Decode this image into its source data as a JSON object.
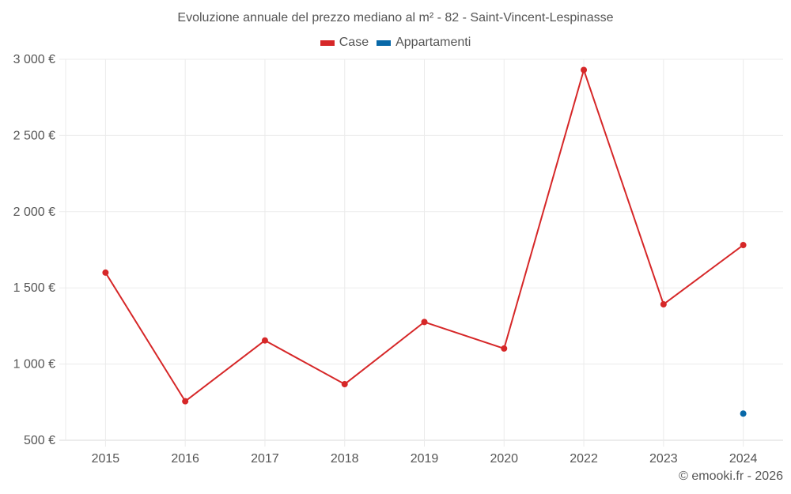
{
  "chart_data": {
    "type": "line",
    "title": "Evoluzione annuale del prezzo mediano al m² - 82 - Saint-Vincent-Lespinasse",
    "xlabel": "",
    "ylabel": "",
    "categories": [
      "2015",
      "2016",
      "2017",
      "2018",
      "2019",
      "2020",
      "2022",
      "2023",
      "2024"
    ],
    "series": [
      {
        "name": "Case",
        "color": "#d62728",
        "values": [
          1600,
          756,
          1155,
          868,
          1276,
          1102,
          2930,
          1392,
          1781
        ]
      },
      {
        "name": "Appartamenti",
        "color": "#0868a8",
        "values": [
          null,
          null,
          null,
          null,
          null,
          null,
          null,
          null,
          675
        ]
      }
    ],
    "ylim": [
      500,
      3000
    ],
    "yticks": [
      500,
      1000,
      1500,
      2000,
      2500,
      3000
    ],
    "ytick_labels": [
      "500 €",
      "1 000 €",
      "1 500 €",
      "2 000 €",
      "2 500 €",
      "3 000 €"
    ],
    "grid": true,
    "legend_position": "top"
  },
  "header": {
    "title": "Evoluzione annuale del prezzo mediano al m² - 82 - Saint-Vincent-Lespinasse"
  },
  "legend": {
    "items": [
      {
        "label": "Case",
        "color": "#d62728"
      },
      {
        "label": "Appartamenti",
        "color": "#0868a8"
      }
    ]
  },
  "footer": {
    "credit": "© emooki.fr - 2026"
  }
}
